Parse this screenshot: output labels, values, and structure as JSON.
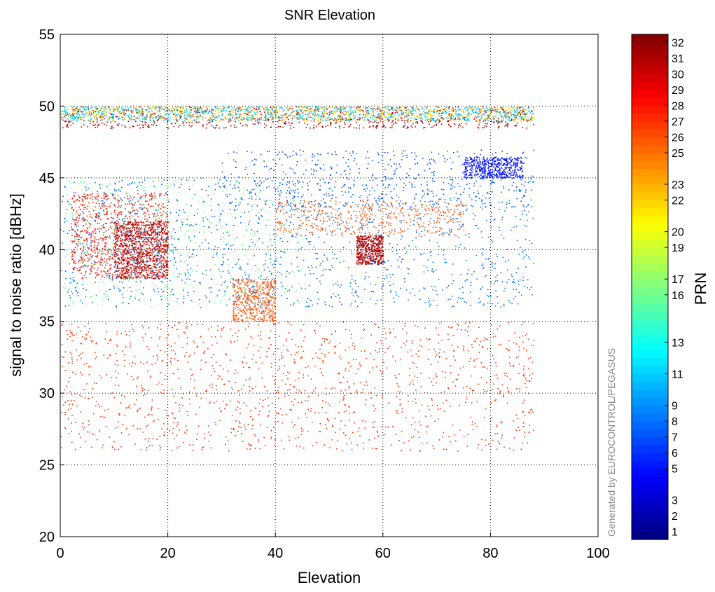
{
  "chart_data": {
    "type": "scatter",
    "title": "SNR Elevation",
    "xlabel": "Elevation",
    "ylabel": "signal to noise ratio  [dBHz]",
    "xlim": [
      0,
      100
    ],
    "ylim": [
      20,
      55
    ],
    "x_ticks": [
      0,
      20,
      40,
      60,
      80,
      100
    ],
    "y_ticks": [
      20,
      25,
      30,
      35,
      40,
      45,
      50,
      55
    ],
    "grid": true,
    "colorbar": {
      "label": "PRN",
      "range": [
        0.5,
        32.5
      ],
      "colormap": "jet",
      "ticks": [
        1,
        2,
        3,
        5,
        6,
        7,
        8,
        9,
        11,
        13,
        16,
        17,
        19,
        20,
        22,
        23,
        25,
        26,
        27,
        28,
        29,
        30,
        31,
        32
      ]
    },
    "watermark": "Generated by EUROCONTROL/PEGASUS",
    "series_clusters": [
      {
        "prn": 31,
        "x": [
          0,
          88
        ],
        "y": [
          48.5,
          50
        ],
        "density": "high"
      },
      {
        "prn": 22,
        "x": [
          0,
          88
        ],
        "y": [
          49,
          50
        ],
        "density": "high"
      },
      {
        "prn": 11,
        "x": [
          0,
          88
        ],
        "y": [
          49,
          50
        ],
        "density": "high"
      },
      {
        "prn": 28,
        "x": [
          2,
          20
        ],
        "y": [
          38,
          44
        ],
        "density": "high"
      },
      {
        "prn": 31,
        "x": [
          10,
          20
        ],
        "y": [
          38,
          42
        ],
        "density": "high"
      },
      {
        "prn": 26,
        "x": [
          40,
          75
        ],
        "y": [
          41,
          43.5
        ],
        "density": "medium"
      },
      {
        "prn": 7,
        "x": [
          30,
          88
        ],
        "y": [
          43,
          47
        ],
        "density": "medium"
      },
      {
        "prn": 5,
        "x": [
          75,
          86
        ],
        "y": [
          45,
          46.5
        ],
        "density": "medium"
      },
      {
        "prn": 26,
        "x": [
          32,
          40
        ],
        "y": [
          35,
          38
        ],
        "density": "medium"
      },
      {
        "prn": 31,
        "x": [
          55,
          60
        ],
        "y": [
          39,
          41
        ],
        "density": "medium"
      },
      {
        "prn": 16,
        "x": [
          0,
          45
        ],
        "y": [
          36,
          45
        ],
        "density": "medium"
      },
      {
        "prn": 8,
        "x": [
          0,
          88
        ],
        "y": [
          36,
          45
        ],
        "density": "low"
      },
      {
        "prn": 27,
        "x": [
          0,
          88
        ],
        "y": [
          26,
          35
        ],
        "density": "low"
      }
    ]
  }
}
